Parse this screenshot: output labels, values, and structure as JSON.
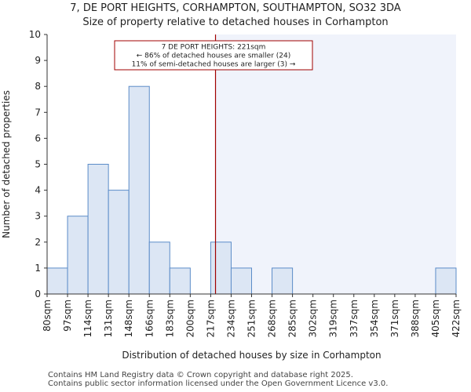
{
  "title_line1": "7, DE PORT HEIGHTS, CORHAMPTON, SOUTHAMPTON, SO32 3DA",
  "title_line2": "Size of property relative to detached houses in Corhampton",
  "footer_line1": "Contains HM Land Registry data © Crown copyright and database right 2025.",
  "footer_line2": "Contains public sector information licensed under the Open Government Licence v3.0.",
  "colors": {
    "bar_fill": "#dce6f4",
    "bar_stroke": "#5b8cc8",
    "highlight_bg": "#f0f3fb",
    "marker_line": "#a00000",
    "annotation_border": "#a00000",
    "axis": "#333333"
  },
  "chart_data": {
    "type": "bar",
    "title": "Size of property relative to detached houses in Corhampton",
    "xlabel": "Distribution of detached houses by size in Corhampton",
    "ylabel": "Number of detached properties",
    "ylim": [
      0,
      10
    ],
    "yticks": [
      0,
      1,
      2,
      3,
      4,
      5,
      6,
      7,
      8,
      9,
      10
    ],
    "bin_edges": [
      80,
      97,
      114,
      131,
      148,
      166,
      183,
      200,
      217,
      234,
      251,
      268,
      285,
      302,
      319,
      337,
      354,
      371,
      388,
      405,
      422
    ],
    "tick_labels": [
      "80sqm",
      "97sqm",
      "114sqm",
      "131sqm",
      "148sqm",
      "166sqm",
      "183sqm",
      "200sqm",
      "217sqm",
      "234sqm",
      "251sqm",
      "268sqm",
      "285sqm",
      "302sqm",
      "319sqm",
      "337sqm",
      "354sqm",
      "371sqm",
      "388sqm",
      "405sqm",
      "422sqm"
    ],
    "values": [
      1,
      3,
      5,
      4,
      8,
      2,
      1,
      0,
      2,
      1,
      0,
      1,
      0,
      0,
      0,
      0,
      0,
      0,
      0,
      1
    ],
    "marker_value": 221,
    "highlight_from": 221,
    "annotation": {
      "line1": "7 DE PORT HEIGHTS: 221sqm",
      "line2": "← 86% of detached houses are smaller (24)",
      "line3": "11% of semi-detached houses are larger (3) →"
    }
  }
}
